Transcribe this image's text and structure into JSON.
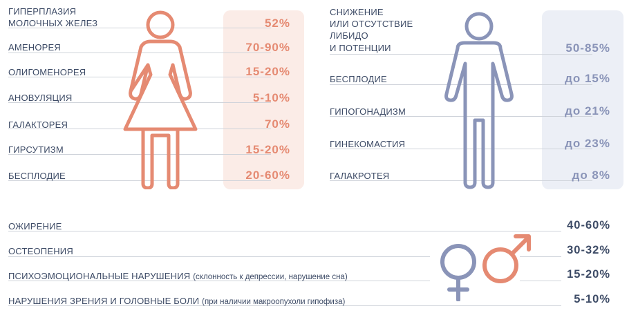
{
  "female": {
    "items": [
      {
        "label_lines": [
          "ГИПЕРПЛАЗИЯ",
          "МОЛОЧНЫХ ЖЕЛЕЗ"
        ],
        "value": "52%"
      },
      {
        "label_lines": [
          "АМЕНОРЕЯ"
        ],
        "value": "70-90%"
      },
      {
        "label_lines": [
          "ОЛИГОМЕНОРЕЯ"
        ],
        "value": "15-20%"
      },
      {
        "label_lines": [
          "АНОВУЛЯЦИЯ"
        ],
        "value": "5-10%"
      },
      {
        "label_lines": [
          "ГАЛАКТОРЕЯ"
        ],
        "value": "70%"
      },
      {
        "label_lines": [
          "ГИРСУТИЗМ"
        ],
        "value": "15-20%"
      },
      {
        "label_lines": [
          "БЕСПЛОДИЕ"
        ],
        "value": "20-60%"
      }
    ]
  },
  "male": {
    "items": [
      {
        "label_lines": [
          "СНИЖЕНИЕ",
          "ИЛИ ОТСУТСТВИЕ",
          "ЛИБИДО",
          "И ПОТЕНЦИИ"
        ],
        "value": "50-85%"
      },
      {
        "label_lines": [
          "БЕСПЛОДИЕ"
        ],
        "value": "до 15%"
      },
      {
        "label_lines": [
          "ГИПОГОНАДИЗМ"
        ],
        "value": "до 21%"
      },
      {
        "label_lines": [
          "ГИНЕКОМАСТИЯ"
        ],
        "value": "до 23%"
      },
      {
        "label_lines": [
          "ГАЛАКРОТЕЯ"
        ],
        "value": "до 8%"
      }
    ]
  },
  "general": {
    "items": [
      {
        "label": "ОЖИРЕНИЕ",
        "note": "",
        "value": "40-60%"
      },
      {
        "label": "ОСТЕОПЕНИЯ",
        "note": "",
        "value": "30-32%"
      },
      {
        "label": "ПСИХОЭМОЦИОНАЛЬНЫЕ НАРУШЕНИЯ",
        "note": "(склонность к депрессии, нарушение сна)",
        "value": "15-20%"
      },
      {
        "label": "НАРУШЕНИЯ ЗРЕНИЯ И ГОЛОВНЫЕ БОЛИ",
        "note": "(при наличии макроопухоли гипофиза)",
        "value": "5-10%"
      }
    ]
  },
  "colors": {
    "female_accent": "#e58a72",
    "male_accent": "#8a94b8",
    "text": "#3d4b66"
  },
  "icons": [
    "female-figure-icon",
    "male-figure-icon",
    "venus-symbol-icon",
    "mars-symbol-icon"
  ]
}
